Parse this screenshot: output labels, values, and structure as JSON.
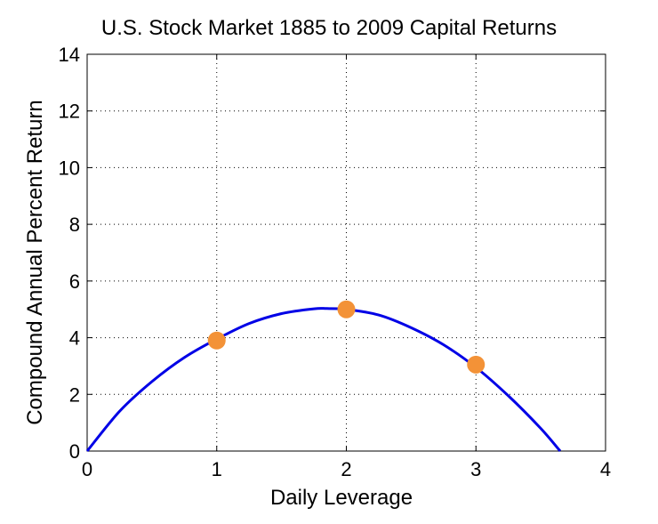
{
  "chart_data": {
    "type": "line",
    "title": "U.S. Stock Market 1885 to 2009 Capital Returns",
    "xlabel": "Daily Leverage",
    "ylabel": "Compound Annual Percent Return",
    "xlim": [
      0,
      4
    ],
    "ylim": [
      0,
      14
    ],
    "xticks": [
      0,
      1,
      2,
      3,
      4
    ],
    "yticks": [
      0,
      2,
      4,
      6,
      8,
      10,
      12,
      14
    ],
    "grid": true,
    "series": [
      {
        "name": "curve",
        "kind": "line",
        "color": "#0000e6",
        "x": [
          0,
          0.25,
          0.5,
          0.75,
          1,
          1.25,
          1.5,
          1.75,
          1.85,
          2,
          2.25,
          2.5,
          2.75,
          3,
          3.25,
          3.5,
          3.65
        ],
        "y": [
          0,
          1.4,
          2.45,
          3.3,
          3.95,
          4.5,
          4.85,
          5.02,
          5.03,
          5.0,
          4.8,
          4.35,
          3.75,
          2.95,
          1.95,
          0.8,
          0
        ]
      },
      {
        "name": "points",
        "kind": "scatter",
        "color": "#f39237",
        "x": [
          1,
          2,
          3
        ],
        "y": [
          3.9,
          5.0,
          3.05
        ]
      }
    ]
  }
}
